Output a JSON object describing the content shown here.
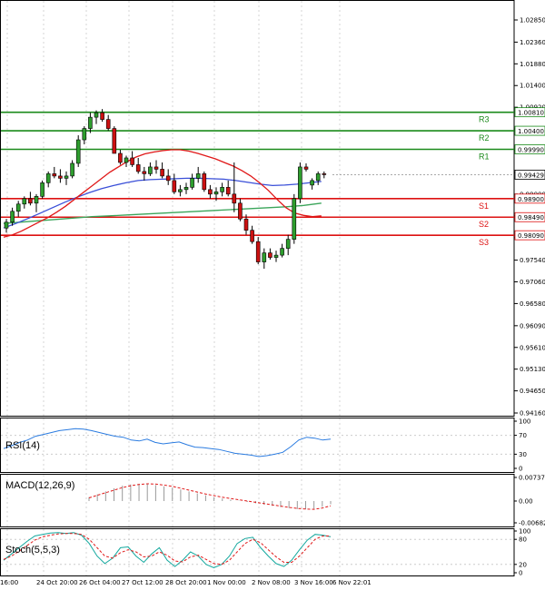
{
  "chart_data": {
    "type": "candlestick",
    "x_labels": [
      "16:00",
      "24 Oct 20:00",
      "26 Oct 04:00",
      "27 Oct 12:00",
      "28 Oct 20:00",
      "1 Nov 00:00",
      "2 Nov 08:00",
      "3 Nov 16:00",
      "6 Nov 22:01"
    ],
    "y_ticks": [
      "1.02850",
      "1.02360",
      "1.01880",
      "1.01400",
      "1.00920",
      "1.00440",
      "0.99960",
      "0.99480",
      "0.99000",
      "0.98520",
      "0.98040",
      "0.97540",
      "0.97060",
      "0.96580",
      "0.96090",
      "0.95610",
      "0.95130",
      "0.94650",
      "0.94160"
    ],
    "ylim": [
      0.9416,
      1.0285
    ],
    "current_price": "0.99429",
    "levels": [
      {
        "name": "R3",
        "value": "1.00810",
        "color": "#1a8a1a"
      },
      {
        "name": "R2",
        "value": "1.00400",
        "color": "#1a8a1a"
      },
      {
        "name": "R1",
        "value": "0.99990",
        "color": "#1a8a1a"
      },
      {
        "name": "S1",
        "value": "0.98900",
        "color": "#dd1111"
      },
      {
        "name": "S2",
        "value": "0.98490",
        "color": "#dd1111"
      },
      {
        "name": "S3",
        "value": "0.98090",
        "color": "#dd1111"
      }
    ],
    "candles": [
      [
        0.9825,
        0.9845,
        0.9815,
        0.9838
      ],
      [
        0.9838,
        0.987,
        0.983,
        0.9862
      ],
      [
        0.9862,
        0.9885,
        0.985,
        0.9878
      ],
      [
        0.9878,
        0.9895,
        0.9868,
        0.989
      ],
      [
        0.989,
        0.9905,
        0.9875,
        0.988
      ],
      [
        0.988,
        0.99,
        0.986,
        0.9895
      ],
      [
        0.9895,
        0.993,
        0.989,
        0.9925
      ],
      [
        0.9925,
        0.995,
        0.9915,
        0.9945
      ],
      [
        0.9945,
        0.996,
        0.9935,
        0.994
      ],
      [
        0.994,
        0.9955,
        0.9925,
        0.9935
      ],
      [
        0.9935,
        0.995,
        0.992,
        0.994
      ],
      [
        0.994,
        0.9975,
        0.9935,
        0.9968
      ],
      [
        0.9968,
        1.003,
        0.996,
        1.002
      ],
      [
        1.002,
        1.005,
        1.001,
        1.0045
      ],
      [
        1.0045,
        1.008,
        1.0035,
        1.007
      ],
      [
        1.007,
        1.0085,
        1.0055,
        1.008
      ],
      [
        1.008,
        1.0088,
        1.006,
        1.0065
      ],
      [
        1.0065,
        1.0075,
        1.004,
        1.0045
      ],
      [
        1.0045,
        1.005,
        0.999,
        0.999
      ],
      [
        0.999,
        0.9998,
        0.9965,
        0.997
      ],
      [
        0.997,
        0.9985,
        0.996,
        0.998
      ],
      [
        0.998,
        0.9995,
        0.996,
        0.9965
      ],
      [
        0.9965,
        0.998,
        0.9945,
        0.995
      ],
      [
        0.995,
        0.996,
        0.993,
        0.9945
      ],
      [
        0.9945,
        0.997,
        0.994,
        0.996
      ],
      [
        0.996,
        0.9975,
        0.9945,
        0.9955
      ],
      [
        0.9955,
        0.997,
        0.9935,
        0.994
      ],
      [
        0.994,
        0.9955,
        0.992,
        0.993
      ],
      [
        0.993,
        0.9945,
        0.99,
        0.9905
      ],
      [
        0.9905,
        0.992,
        0.9895,
        0.991
      ],
      [
        0.991,
        0.9925,
        0.99,
        0.9915
      ],
      [
        0.9915,
        0.9945,
        0.991,
        0.9935
      ],
      [
        0.9935,
        0.996,
        0.9925,
        0.9945
      ],
      [
        0.9945,
        0.995,
        0.9905,
        0.991
      ],
      [
        0.991,
        0.992,
        0.989,
        0.99
      ],
      [
        0.99,
        0.9915,
        0.9885,
        0.9905
      ],
      [
        0.9905,
        0.9925,
        0.9895,
        0.9915
      ],
      [
        0.9915,
        0.993,
        0.9895,
        0.99
      ],
      [
        0.99,
        0.997,
        0.986,
        0.988
      ],
      [
        0.988,
        0.989,
        0.984,
        0.9845
      ],
      [
        0.9845,
        0.9855,
        0.981,
        0.982
      ],
      [
        0.982,
        0.983,
        0.979,
        0.9795
      ],
      [
        0.9795,
        0.9805,
        0.9745,
        0.975
      ],
      [
        0.975,
        0.978,
        0.9735,
        0.977
      ],
      [
        0.977,
        0.978,
        0.9755,
        0.976
      ],
      [
        0.976,
        0.9775,
        0.975,
        0.9765
      ],
      [
        0.9765,
        0.979,
        0.976,
        0.978
      ],
      [
        0.978,
        0.981,
        0.9765,
        0.98
      ],
      [
        0.98,
        0.99,
        0.979,
        0.989
      ],
      [
        0.989,
        0.997,
        0.988,
        0.996
      ],
      [
        0.996,
        0.9968,
        0.995,
        0.9955
      ],
      [
        0.992,
        0.9935,
        0.991,
        0.993
      ],
      [
        0.993,
        0.995,
        0.992,
        0.9945
      ],
      [
        0.9945,
        0.995,
        0.9935,
        0.9943
      ]
    ],
    "ma_red": [
      0.9805,
      0.981,
      0.9818,
      0.9828,
      0.9838,
      0.9848,
      0.986,
      0.9873,
      0.9888,
      0.9903,
      0.9918,
      0.9933,
      0.9948,
      0.996,
      0.9972,
      0.9982,
      0.9989,
      0.9993,
      0.9996,
      0.9998,
      0.9998,
      0.9995,
      0.999,
      0.9984,
      0.9978,
      0.997,
      0.9962,
      0.9952,
      0.994,
      0.9925,
      0.9908,
      0.9888,
      0.987,
      0.9858,
      0.9853,
      0.985,
      0.9852
    ],
    "ma_blue": [
      0.9825,
      0.9835,
      0.9846,
      0.9858,
      0.987,
      0.9882,
      0.9893,
      0.9903,
      0.9912,
      0.9919,
      0.9925,
      0.993,
      0.9932,
      0.9933,
      0.9934,
      0.9935,
      0.9935,
      0.9934,
      0.9933,
      0.993,
      0.9926,
      0.9922,
      0.9919,
      0.992,
      0.9922,
      0.9925,
      0.9928
    ],
    "ma_green": [
      0.9835,
      0.9838,
      0.9841,
      0.9844,
      0.9847,
      0.985,
      0.9852,
      0.9854,
      0.9856,
      0.9858,
      0.986,
      0.9862,
      0.9864,
      0.9866,
      0.9868,
      0.987,
      0.9872,
      0.9875,
      0.988
    ],
    "rsi": {
      "label": "RSI(14)",
      "ticks": [
        "100",
        "70",
        "30",
        "0"
      ],
      "ylim": [
        0,
        100
      ],
      "values": [
        42,
        48,
        55,
        60,
        68,
        72,
        76,
        80,
        82,
        84,
        83,
        80,
        76,
        72,
        68,
        66,
        60,
        58,
        62,
        55,
        52,
        54,
        56,
        50,
        45,
        44,
        42,
        40,
        36,
        32,
        30,
        28,
        25,
        27,
        30,
        34,
        46,
        60,
        66,
        64,
        60,
        62
      ]
    },
    "macd": {
      "label": "MACD(12,26,9)",
      "ticks": [
        "0.007378",
        "0.00",
        "-0.006821"
      ],
      "ylim": [
        -0.006821,
        0.007378
      ],
      "hist": [
        0.0012,
        0.0021,
        0.003,
        0.004,
        0.0048,
        0.0052,
        0.0054,
        0.0053,
        0.005,
        0.0046,
        0.0042,
        0.0036,
        0.003,
        0.0024,
        0.0018,
        0.0012,
        0.0008,
        0.0004,
        0.0001,
        -0.0003,
        -0.0007,
        -0.0011,
        -0.0015,
        -0.0019,
        -0.0022,
        -0.0025,
        -0.0026,
        -0.0024,
        -0.0018,
        -0.001
      ],
      "signal": [
        0.001,
        0.0018,
        0.0026,
        0.0034,
        0.0042,
        0.0048,
        0.0052,
        0.0054,
        0.0053,
        0.005,
        0.0046,
        0.004,
        0.0034,
        0.0028,
        0.0022,
        0.0017,
        0.0012,
        0.0008,
        0.0004,
        0.0,
        -0.0004,
        -0.0008,
        -0.0012,
        -0.0016,
        -0.002,
        -0.0023,
        -0.0025,
        -0.0026,
        -0.0022,
        -0.0015
      ]
    },
    "stoch": {
      "label": "Stoch(5,5,3)",
      "ticks": [
        "100",
        "80",
        "20",
        "0"
      ],
      "ylim": [
        0,
        100
      ],
      "k": [
        30,
        45,
        60,
        75,
        88,
        92,
        95,
        96,
        94,
        96,
        90,
        70,
        40,
        22,
        35,
        60,
        62,
        40,
        25,
        45,
        60,
        30,
        15,
        30,
        50,
        40,
        20,
        12,
        20,
        40,
        70,
        82,
        85,
        60,
        40,
        22,
        15,
        30,
        55,
        78,
        92,
        90,
        86
      ],
      "d": [
        32,
        40,
        52,
        65,
        78,
        86,
        90,
        93,
        94,
        94,
        92,
        80,
        60,
        40,
        35,
        48,
        55,
        50,
        38,
        40,
        50,
        42,
        28,
        26,
        38,
        42,
        32,
        22,
        20,
        30,
        50,
        70,
        80,
        72,
        55,
        38,
        25,
        25,
        40,
        60,
        80,
        88,
        88
      ]
    }
  }
}
